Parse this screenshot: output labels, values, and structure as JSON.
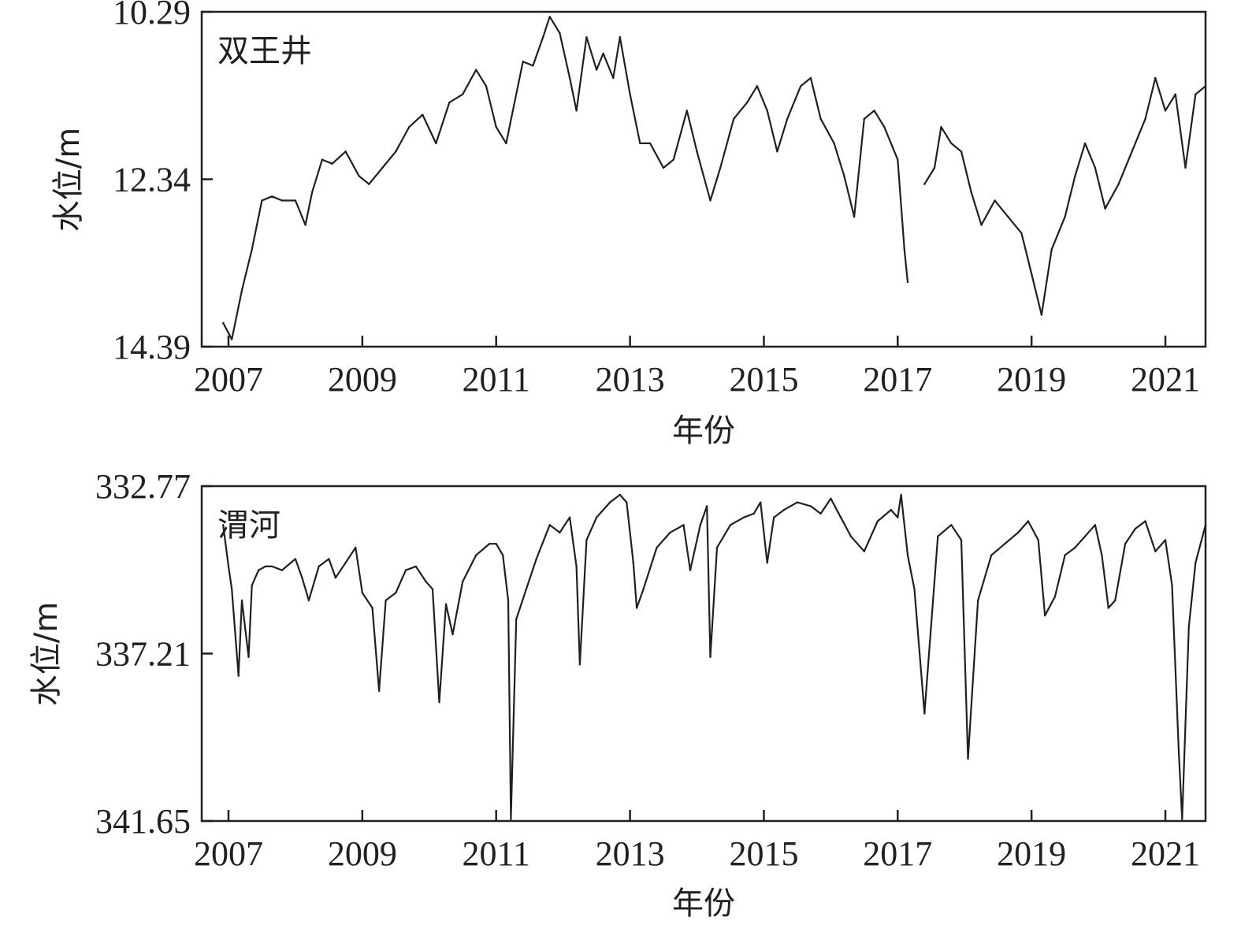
{
  "chart_data": [
    {
      "type": "line",
      "title": "双王井",
      "xlabel": "年份",
      "ylabel": "水位/m",
      "y_inverted": true,
      "ylim": [
        10.29,
        14.39
      ],
      "yticks": [
        10.29,
        12.34,
        14.39
      ],
      "xlim": [
        2006.6,
        2021.6
      ],
      "xticks": [
        2007,
        2009,
        2011,
        2013,
        2015,
        2017,
        2019,
        2021
      ],
      "grid": false,
      "series": [
        {
          "x": [
            2006.92,
            2007.05,
            2007.2,
            2007.35,
            2007.5,
            2007.65,
            2007.8,
            2008.0,
            2008.1,
            2008.15,
            2008.25,
            2008.4,
            2008.55,
            2008.75,
            2008.95,
            2009.1,
            2009.3,
            2009.5,
            2009.7,
            2009.9,
            2010.1,
            2010.3,
            2010.5,
            2010.7,
            2010.85,
            2011.0,
            2011.15,
            2011.25,
            2011.4,
            2011.55,
            2011.7,
            2011.8,
            2011.95,
            2012.1,
            2012.2,
            2012.35,
            2012.5,
            2012.6,
            2012.75,
            2012.85,
            2013.0,
            2013.15,
            2013.3,
            2013.5,
            2013.65,
            2013.85,
            2014.0,
            2014.2,
            2014.35,
            2014.55,
            2014.75,
            2014.9,
            2015.05,
            2015.2,
            2015.35,
            2015.55,
            2015.7,
            2015.85,
            2016.05,
            2016.2,
            2016.35,
            2016.5,
            2016.65,
            2016.8,
            2017.0,
            2017.1,
            2017.15,
            null,
            2017.4,
            2017.55,
            2017.65,
            2017.8,
            2017.95,
            2018.1,
            2018.25,
            2018.45,
            2018.65,
            2018.85,
            2019.0,
            2019.15,
            2019.3,
            2019.5,
            2019.65,
            2019.8,
            2019.95,
            2020.1,
            2020.3,
            2020.5,
            2020.7,
            2020.85,
            2021.0,
            2021.15,
            2021.3,
            2021.45,
            2021.6
          ],
          "values": [
            14.1,
            14.3,
            13.7,
            13.2,
            12.6,
            12.55,
            12.6,
            12.6,
            12.8,
            12.9,
            12.5,
            12.1,
            12.15,
            12.0,
            12.3,
            12.4,
            12.2,
            12.0,
            11.7,
            11.55,
            11.9,
            11.4,
            11.3,
            11.0,
            11.2,
            11.7,
            11.9,
            11.5,
            10.9,
            10.95,
            10.6,
            10.35,
            10.55,
            11.1,
            11.5,
            10.6,
            11.0,
            10.8,
            11.1,
            10.6,
            11.3,
            11.9,
            11.9,
            12.2,
            12.1,
            11.5,
            12.0,
            12.6,
            12.2,
            11.6,
            11.4,
            11.2,
            11.5,
            12.0,
            11.6,
            11.2,
            11.1,
            11.6,
            11.9,
            12.3,
            12.8,
            11.6,
            11.5,
            11.7,
            12.1,
            13.2,
            13.6,
            null,
            12.4,
            12.2,
            11.7,
            11.9,
            12.0,
            12.5,
            12.9,
            12.6,
            12.8,
            13.0,
            13.5,
            14.0,
            13.2,
            12.8,
            12.3,
            11.9,
            12.2,
            12.7,
            12.4,
            12.0,
            11.6,
            11.1,
            11.5,
            11.3,
            12.2,
            11.3,
            11.2
          ]
        }
      ]
    },
    {
      "type": "line",
      "title": "渭河",
      "xlabel": "年份",
      "ylabel": "水位/m",
      "ylim": [
        332.77,
        341.65
      ],
      "yticks": [
        341.65,
        337.21,
        332.77
      ],
      "xlim": [
        2006.6,
        2021.6
      ],
      "xticks": [
        2007,
        2009,
        2011,
        2013,
        2015,
        2017,
        2019,
        2021
      ],
      "grid": false,
      "series": [
        {
          "x": [
            2006.92,
            2007.0,
            2007.05,
            2007.15,
            2007.2,
            2007.3,
            2007.35,
            2007.45,
            2007.55,
            2007.65,
            2007.8,
            2008.0,
            2008.1,
            2008.2,
            2008.35,
            2008.5,
            2008.6,
            2008.75,
            2008.9,
            2009.0,
            2009.15,
            2009.25,
            2009.35,
            2009.5,
            2009.65,
            2009.8,
            2009.95,
            2010.05,
            2010.15,
            2010.25,
            2010.35,
            2010.5,
            2010.7,
            2010.9,
            2011.0,
            2011.1,
            2011.18,
            2011.22,
            2011.3,
            2011.45,
            2011.6,
            2011.8,
            2011.95,
            2012.1,
            2012.2,
            2012.25,
            2012.35,
            2012.5,
            2012.7,
            2012.85,
            2012.95,
            2013.05,
            2013.1,
            2013.2,
            2013.4,
            2013.6,
            2013.8,
            2013.9,
            2014.05,
            2014.15,
            2014.2,
            2014.3,
            2014.5,
            2014.7,
            2014.85,
            2014.95,
            2015.05,
            2015.15,
            2015.3,
            2015.5,
            2015.7,
            2015.85,
            2016.0,
            2016.15,
            2016.3,
            2016.5,
            2016.7,
            2016.9,
            2017.0,
            2017.05,
            2017.15,
            2017.25,
            2017.4,
            2017.6,
            2017.8,
            2017.95,
            2018.05,
            2018.2,
            2018.4,
            2018.6,
            2018.8,
            2018.95,
            2019.1,
            2019.2,
            2019.35,
            2019.5,
            2019.65,
            2019.8,
            2019.95,
            2020.05,
            2020.15,
            2020.25,
            2020.4,
            2020.55,
            2020.7,
            2020.85,
            2021.0,
            2021.1,
            2021.2,
            2021.25,
            2021.35,
            2021.45,
            2021.6
          ],
          "values": [
            333.8,
            334.9,
            335.5,
            337.8,
            335.8,
            337.3,
            335.4,
            335.0,
            334.9,
            334.9,
            335.0,
            334.7,
            335.2,
            335.8,
            334.9,
            334.7,
            335.2,
            334.8,
            334.4,
            335.6,
            336.0,
            338.2,
            335.8,
            335.6,
            335.0,
            334.9,
            335.3,
            335.5,
            338.5,
            335.9,
            336.7,
            335.3,
            334.6,
            334.3,
            334.3,
            334.6,
            335.8,
            341.6,
            336.3,
            335.5,
            334.7,
            333.8,
            334.0,
            333.6,
            334.9,
            337.5,
            334.2,
            333.6,
            333.2,
            333.0,
            333.2,
            334.8,
            336.0,
            335.5,
            334.4,
            334.0,
            333.8,
            335.0,
            333.8,
            333.3,
            337.3,
            334.4,
            333.8,
            333.6,
            333.5,
            333.2,
            334.8,
            333.6,
            333.4,
            333.2,
            333.3,
            333.5,
            333.1,
            333.6,
            334.1,
            334.5,
            333.7,
            333.4,
            333.6,
            333.0,
            334.6,
            335.5,
            338.8,
            334.1,
            333.8,
            334.2,
            340.0,
            335.8,
            334.6,
            334.3,
            334.0,
            333.7,
            334.2,
            336.2,
            335.7,
            334.6,
            334.4,
            334.1,
            333.8,
            334.6,
            336.0,
            335.8,
            334.3,
            333.9,
            333.7,
            334.5,
            334.2,
            335.4,
            339.8,
            341.6,
            336.5,
            334.8,
            333.8
          ]
        }
      ]
    }
  ]
}
